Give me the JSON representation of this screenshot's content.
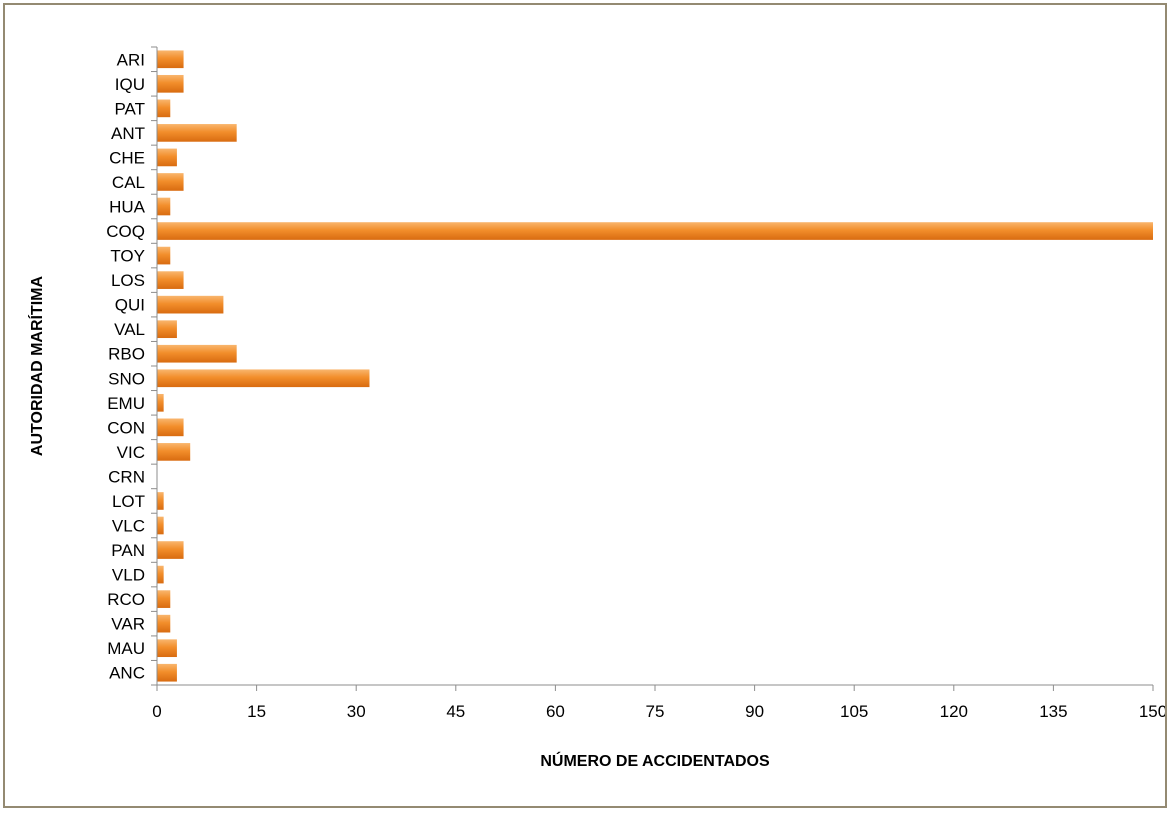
{
  "chart_data": {
    "type": "bar",
    "orientation": "horizontal",
    "categories": [
      "ARI",
      "IQU",
      "PAT",
      "ANT",
      "CHE",
      "CAL",
      "HUA",
      "COQ",
      "TOY",
      "LOS",
      "QUI",
      "VAL",
      "RBO",
      "SNO",
      "EMU",
      "CON",
      "VIC",
      "CRN",
      "LOT",
      "VLC",
      "PAN",
      "VLD",
      "RCO",
      "VAR",
      "MAU",
      "ANC"
    ],
    "values": [
      4,
      4,
      2,
      12,
      3,
      4,
      2,
      150,
      2,
      4,
      10,
      3,
      12,
      32,
      1,
      4,
      5,
      0,
      1,
      1,
      4,
      1,
      2,
      2,
      3,
      3
    ],
    "xlabel": "NÚMERO DE ACCIDENTADOS",
    "ylabel": "AUTORIDAD MARÍTIMA",
    "xlim": [
      0,
      150
    ],
    "xticks": [
      0,
      15,
      30,
      45,
      60,
      75,
      90,
      105,
      120,
      135,
      150
    ],
    "grid": false,
    "legend": "none",
    "colors": {
      "bar": "#f28e2b",
      "bar_light": "#f9b66e",
      "bar_dark": "#d86b10",
      "axis": "#8c8c8c",
      "border": "#948a72"
    }
  }
}
